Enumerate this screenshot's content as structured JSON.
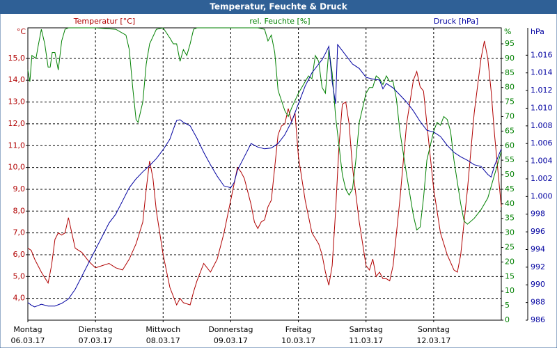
{
  "chart_data": {
    "type": "line",
    "title": "Temperatur, Feuchte & Druck",
    "axis_units": [
      "°C",
      "%",
      "hPa"
    ],
    "xlim": [
      0,
      7
    ],
    "xticks": [
      {
        "value": 0,
        "label": "Montag"
      },
      {
        "value": 1,
        "label": "Dienstag"
      },
      {
        "value": 2,
        "label": "Mittwoch"
      },
      {
        "value": 3,
        "label": "Donnerstag"
      },
      {
        "value": 4,
        "label": "Freitag"
      },
      {
        "value": 5,
        "label": "Samstag"
      },
      {
        "value": 6,
        "label": "Sonntag"
      }
    ],
    "xtick_dates": [
      "06.03.17",
      "07.03.17",
      "08.03.17",
      "09.03.17",
      "10.03.17",
      "11.03.17",
      "12.03.17"
    ],
    "ylim": [
      3.0,
      16.4
    ],
    "yticks": [
      {
        "value": 4,
        "label": "4,0"
      },
      {
        "value": 5,
        "label": "5,0"
      },
      {
        "value": 6,
        "label": "6,0"
      },
      {
        "value": 7,
        "label": "7,0"
      },
      {
        "value": 8,
        "label": "8,0"
      },
      {
        "value": 9,
        "label": "9,0"
      },
      {
        "value": 10,
        "label": "10,0"
      },
      {
        "value": 11,
        "label": "11,0"
      },
      {
        "value": 12,
        "label": "12,0"
      },
      {
        "value": 13,
        "label": "13,0"
      },
      {
        "value": 14,
        "label": "14,0"
      },
      {
        "value": 15,
        "label": "15,0"
      }
    ],
    "y2lim": [
      0,
      100.5
    ],
    "y2ticks": [
      0,
      5,
      10,
      15,
      20,
      25,
      30,
      35,
      40,
      45,
      50,
      55,
      60,
      65,
      70,
      75,
      80,
      85,
      90,
      95
    ],
    "y3lim": [
      986,
      1019.1
    ],
    "y3ticks": [
      986,
      988,
      990,
      992,
      994,
      996,
      998,
      {
        "value": 1000,
        "label": "1.000"
      },
      {
        "value": 1002,
        "label": "1.002"
      },
      {
        "value": 1004,
        "label": "1.004"
      },
      {
        "value": 1006,
        "label": "1.006"
      },
      {
        "value": 1008,
        "label": "1.008"
      },
      {
        "value": 1010,
        "label": "1.010"
      },
      {
        "value": 1012,
        "label": "1.012"
      },
      {
        "value": 1014,
        "label": "1.014"
      },
      {
        "value": 1016,
        "label": "1.016"
      }
    ],
    "grid": true,
    "series": [
      {
        "name": "Temperatur [°C]",
        "color": "#b00000",
        "axis": "y",
        "x": [
          0,
          0.05,
          0.1,
          0.2,
          0.3,
          0.35,
          0.4,
          0.45,
          0.5,
          0.55,
          0.6,
          0.65,
          0.7,
          0.8,
          0.9,
          1.0,
          1.1,
          1.2,
          1.3,
          1.4,
          1.5,
          1.6,
          1.7,
          1.75,
          1.8,
          1.85,
          1.9,
          2.0,
          2.1,
          2.2,
          2.25,
          2.3,
          2.4,
          2.45,
          2.5,
          2.6,
          2.7,
          2.8,
          2.9,
          3.0,
          3.1,
          3.15,
          3.2,
          3.3,
          3.35,
          3.4,
          3.45,
          3.5,
          3.55,
          3.6,
          3.7,
          3.75,
          3.8,
          3.85,
          3.9,
          3.95,
          4.0,
          4.1,
          4.2,
          4.3,
          4.35,
          4.4,
          4.45,
          4.5,
          4.55,
          4.6,
          4.65,
          4.7,
          4.75,
          4.8,
          4.9,
          5.0,
          5.05,
          5.1,
          5.15,
          5.2,
          5.25,
          5.3,
          5.35,
          5.4,
          5.5,
          5.6,
          5.7,
          5.75,
          5.8,
          5.85,
          5.9,
          6.0,
          6.1,
          6.2,
          6.3,
          6.35,
          6.4,
          6.5,
          6.6,
          6.7,
          6.75,
          6.8,
          6.85,
          6.9,
          7.0
        ],
        "values": [
          6.3,
          6.2,
          5.8,
          5.2,
          4.7,
          5.5,
          6.7,
          7.0,
          6.9,
          7.0,
          7.7,
          7.0,
          6.3,
          6.1,
          5.7,
          5.4,
          5.5,
          5.6,
          5.4,
          5.3,
          5.8,
          6.5,
          7.5,
          9.0,
          10.3,
          9.5,
          8.0,
          6.0,
          4.5,
          3.7,
          4.0,
          3.8,
          3.7,
          4.3,
          4.8,
          5.6,
          5.2,
          5.8,
          7.0,
          8.5,
          10.0,
          9.8,
          9.5,
          8.3,
          7.5,
          7.2,
          7.5,
          7.6,
          8.2,
          8.5,
          11.5,
          11.9,
          12.0,
          12.7,
          12.1,
          12.5,
          10.5,
          8.5,
          7.0,
          6.5,
          6.0,
          5.2,
          4.6,
          5.5,
          8.0,
          11.0,
          12.9,
          13.0,
          12.0,
          10.0,
          7.5,
          5.5,
          5.3,
          5.8,
          5.0,
          5.2,
          4.9,
          4.9,
          4.8,
          5.5,
          8.5,
          12.0,
          14.0,
          14.4,
          13.7,
          13.5,
          12.0,
          9.0,
          7.0,
          6.0,
          5.3,
          5.2,
          6.0,
          9.0,
          12.5,
          15.0,
          15.8,
          15.0,
          13.5,
          11.5,
          8.2
        ]
      },
      {
        "name": "rel. Feuchte [%]",
        "color": "#008000",
        "axis": "y2",
        "x": [
          0,
          0.03,
          0.06,
          0.12,
          0.15,
          0.2,
          0.25,
          0.3,
          0.33,
          0.36,
          0.4,
          0.45,
          0.5,
          0.55,
          0.6,
          0.8,
          1.0,
          1.3,
          1.45,
          1.5,
          1.55,
          1.6,
          1.63,
          1.7,
          1.75,
          1.8,
          1.9,
          2.0,
          2.1,
          2.15,
          2.2,
          2.25,
          2.3,
          2.35,
          2.4,
          2.45,
          2.5,
          3.0,
          3.4,
          3.5,
          3.55,
          3.6,
          3.65,
          3.7,
          3.8,
          3.85,
          3.9,
          4.0,
          4.1,
          4.15,
          4.2,
          4.25,
          4.3,
          4.35,
          4.4,
          4.45,
          4.5,
          4.55,
          4.6,
          4.65,
          4.7,
          4.75,
          4.8,
          4.85,
          4.9,
          5.0,
          5.05,
          5.1,
          5.15,
          5.2,
          5.25,
          5.3,
          5.35,
          5.4,
          5.45,
          5.5,
          5.6,
          5.7,
          5.75,
          5.8,
          5.85,
          5.9,
          6.0,
          6.05,
          6.1,
          6.15,
          6.2,
          6.25,
          6.3,
          6.4,
          6.45,
          6.5,
          6.6,
          6.7,
          6.8,
          6.9,
          7.0
        ],
        "values": [
          86,
          82,
          91,
          90,
          94,
          100,
          95,
          87,
          87,
          92,
          92,
          86,
          96,
          100,
          100.5,
          100.5,
          100.5,
          100,
          98,
          93,
          80,
          69,
          68,
          75,
          88,
          95,
          100,
          100.5,
          97,
          95,
          95,
          89,
          93,
          91,
          95,
          100,
          100.5,
          100.5,
          100.5,
          100,
          96,
          98,
          92,
          79,
          72,
          70,
          73,
          78,
          82,
          84,
          83,
          91,
          89,
          80,
          78,
          93,
          85,
          70,
          60,
          50,
          45,
          43,
          45,
          55,
          68,
          78,
          80,
          80,
          84,
          83,
          81,
          84,
          82,
          82,
          76,
          65,
          50,
          36,
          31,
          32,
          42,
          55,
          65,
          68,
          67,
          70,
          69,
          65,
          55,
          40,
          34,
          33,
          35,
          38,
          42,
          50,
          58
        ]
      },
      {
        "name": "Druck [hPa]",
        "color": "#0000a0",
        "axis": "y3",
        "x": [
          0,
          0.05,
          0.1,
          0.2,
          0.3,
          0.4,
          0.5,
          0.6,
          0.7,
          0.8,
          0.9,
          1.0,
          1.1,
          1.2,
          1.3,
          1.4,
          1.5,
          1.6,
          1.7,
          1.8,
          1.9,
          2.0,
          2.1,
          2.15,
          2.2,
          2.25,
          2.3,
          2.4,
          2.5,
          2.6,
          2.7,
          2.8,
          2.9,
          3.0,
          3.05,
          3.1,
          3.2,
          3.3,
          3.4,
          3.5,
          3.6,
          3.7,
          3.8,
          3.9,
          4.0,
          4.1,
          4.2,
          4.3,
          4.35,
          4.4,
          4.45,
          4.5,
          4.55,
          4.58,
          4.62,
          4.7,
          4.8,
          4.9,
          5.0,
          5.1,
          5.2,
          5.25,
          5.3,
          5.4,
          5.5,
          5.6,
          5.7,
          5.8,
          5.9,
          6.0,
          6.1,
          6.2,
          6.3,
          6.4,
          6.5,
          6.6,
          6.7,
          6.8,
          6.85,
          6.9,
          7.0
        ],
        "values": [
          988.0,
          987.7,
          987.5,
          987.8,
          987.6,
          987.6,
          987.9,
          988.4,
          989.5,
          991,
          992.5,
          994,
          995.5,
          997,
          998,
          999.5,
          1001,
          1002,
          1002.8,
          1003.5,
          1004.3,
          1005.3,
          1006.5,
          1007.6,
          1008.6,
          1008.7,
          1008.4,
          1008.0,
          1006.6,
          1005.0,
          1003.6,
          1002.3,
          1001.2,
          1001.0,
          1001.6,
          1003,
          1004.5,
          1006,
          1005.6,
          1005.4,
          1005.5,
          1006,
          1007,
          1008.5,
          1010.5,
          1012.5,
          1014,
          1015,
          1015.5,
          1016.2,
          1017,
          1013,
          1010.5,
          1017.2,
          1016.8,
          1016,
          1015,
          1014.5,
          1013.5,
          1013.3,
          1013.2,
          1012.2,
          1012.8,
          1012.3,
          1011.5,
          1010.7,
          1009.7,
          1008.5,
          1007.5,
          1007.3,
          1006.8,
          1005.8,
          1005.0,
          1004.5,
          1004.1,
          1003.6,
          1003.4,
          1002.5,
          1002.2,
          1003.5,
          1005.4
        ]
      }
    ]
  }
}
